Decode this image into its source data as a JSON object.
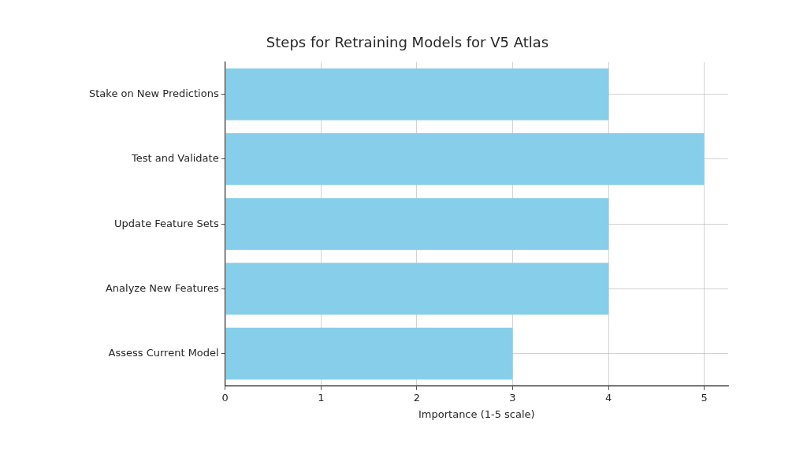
{
  "chart_data": {
    "type": "bar",
    "orientation": "horizontal",
    "title": "Steps for Retraining Models for V5 Atlas",
    "x_label": "Importance (1-5 scale)",
    "categories": [
      "Stake on New Predictions",
      "Test and Validate",
      "Update Feature Sets",
      "Analyze New Features",
      "Assess Current Model"
    ],
    "values": [
      4,
      5,
      4,
      4,
      3
    ],
    "color": "#87ceeb",
    "xlim": [
      0,
      5.25
    ],
    "xticks": [
      0,
      1,
      2,
      3,
      4,
      5
    ],
    "grid": true
  }
}
